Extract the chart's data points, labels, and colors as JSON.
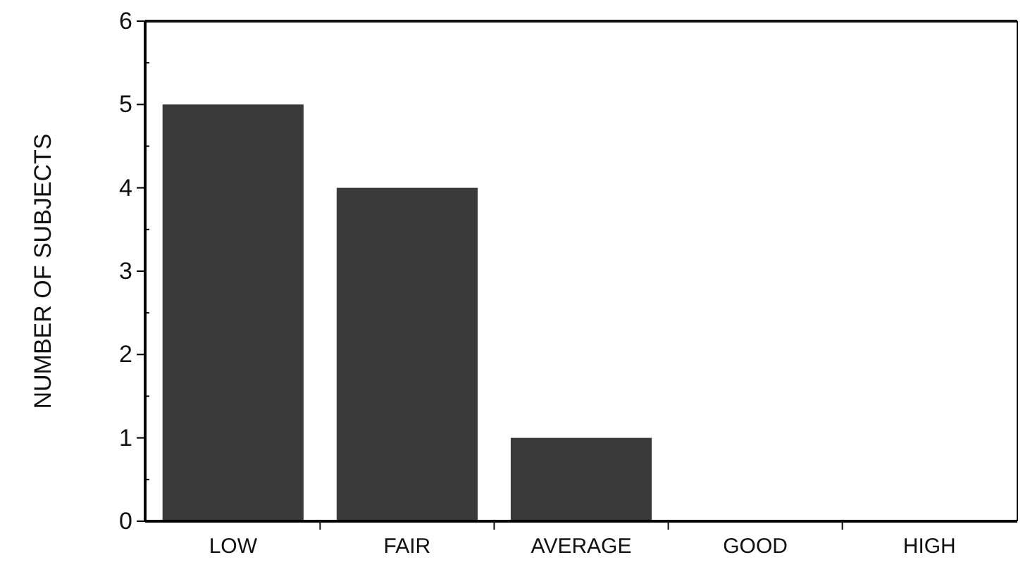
{
  "chart_data": {
    "type": "bar",
    "ylabel": "NUMBER OF SUBJECTS",
    "categories": [
      "LOW",
      "FAIR",
      "AVERAGE",
      "GOOD",
      "HIGH"
    ],
    "values": [
      5,
      4,
      1,
      0,
      0
    ],
    "color": "#3a3a3a",
    "ylim": [
      0,
      6
    ],
    "yticks": [
      0,
      {
        "value": 0.5,
        "label": null
      },
      1,
      {
        "value": 1.5,
        "label": null
      },
      2,
      {
        "value": 2.5,
        "label": null
      },
      3,
      {
        "value": 3.5,
        "label": null
      },
      4,
      {
        "value": 4.5,
        "label": null
      },
      5,
      {
        "value": 5.5,
        "label": null
      },
      6
    ],
    "grid": false
  }
}
